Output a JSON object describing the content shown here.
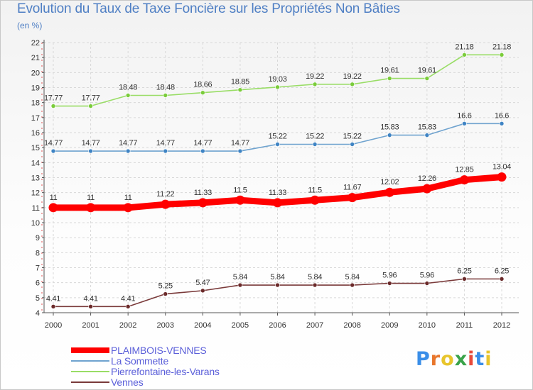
{
  "header": {
    "title": "Evolution du Taux de Taxe Foncière sur les Propriétés Non Bâties",
    "subtitle": "(en %)"
  },
  "logo": {
    "text": "Proxiti",
    "letter_colors": [
      "#3a8ee8",
      "#e8762c",
      "#e8c52c",
      "#3aa34a",
      "#e84a3a",
      "#3a8ee8",
      "#e8c52c"
    ]
  },
  "chart_data": {
    "type": "line",
    "title": "Evolution du Taux de Taxe Foncière sur les Propriétés Non Bâties",
    "ylabel": "(en %)",
    "xlabel": "",
    "x": [
      "2000",
      "2001",
      "2002",
      "2003",
      "2004",
      "2005",
      "2006",
      "2007",
      "2008",
      "2009",
      "2010",
      "2011",
      "2012"
    ],
    "ylim": [
      4,
      22
    ],
    "yticks": [
      4,
      5,
      6,
      7,
      8,
      9,
      10,
      11,
      12,
      13,
      14,
      15,
      16,
      17,
      18,
      19,
      20,
      21,
      22
    ],
    "grid": true,
    "series": [
      {
        "name": "PLAIMBOIS-VENNES",
        "values": [
          11,
          11,
          11,
          11.22,
          11.33,
          11.5,
          11.33,
          11.5,
          11.67,
          12.02,
          12.26,
          12.85,
          13.04
        ],
        "labels": [
          "11",
          "11",
          "11",
          "11.22",
          "11.33",
          "11.5",
          "11.33",
          "11.5",
          "11.67",
          "12.02",
          "12.26",
          "12.85",
          "13.04"
        ],
        "color": "#ff0000",
        "marker_color": "#ff0000",
        "emphasis": "bold"
      },
      {
        "name": "La Sommette",
        "values": [
          14.77,
          14.77,
          14.77,
          14.77,
          14.77,
          14.77,
          15.22,
          15.22,
          15.22,
          15.83,
          15.83,
          16.6,
          16.6
        ],
        "labels": [
          "14.77",
          "14.77",
          "14.77",
          "14.77",
          "14.77",
          "14.77",
          "15.22",
          "15.22",
          "15.22",
          "15.83",
          "15.83",
          "16.6",
          "16.6"
        ],
        "color": "#6fa3cf",
        "marker_color": "#3f84c4",
        "emphasis": "normal"
      },
      {
        "name": "Pierrefontaine-les-Varans",
        "values": [
          17.77,
          17.77,
          18.48,
          18.48,
          18.66,
          18.85,
          19.03,
          19.22,
          19.22,
          19.61,
          19.61,
          21.18,
          21.18
        ],
        "labels": [
          "17.77",
          "17.77",
          "18.48",
          "18.48",
          "18.66",
          "18.85",
          "19.03",
          "19.22",
          "19.22",
          "19.61",
          "19.61",
          "21.18",
          "21.18"
        ],
        "color": "#99dd66",
        "marker_color": "#7acc3a",
        "emphasis": "normal"
      },
      {
        "name": "Vennes",
        "values": [
          4.41,
          4.41,
          4.41,
          5.25,
          5.47,
          5.84,
          5.84,
          5.84,
          5.84,
          5.96,
          5.96,
          6.25,
          6.25
        ],
        "labels": [
          "4.41",
          "4.41",
          "4.41",
          "5.25",
          "5.47",
          "5.84",
          "5.84",
          "5.84",
          "5.84",
          "5.96",
          "5.96",
          "6.25",
          "6.25"
        ],
        "color": "#7a3a3a",
        "marker_color": "#6b2a2a",
        "emphasis": "normal"
      }
    ],
    "legend_position": "bottom-left"
  }
}
